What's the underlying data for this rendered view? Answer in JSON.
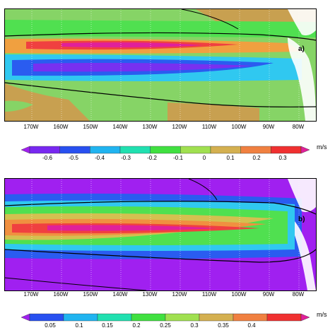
{
  "panels": [
    {
      "label": "a)"
    },
    {
      "label": "b)"
    }
  ],
  "longitude_labels": [
    "170W",
    "160W",
    "150W",
    "140W",
    "130W",
    "120W",
    "110W",
    "100W",
    "90W",
    "80W"
  ],
  "colorbars": [
    {
      "unit": "m/s",
      "ticks": [
        "-0.6",
        "-0.5",
        "-0.4",
        "-0.3",
        "-0.2",
        "-0.1",
        "0",
        "0.1",
        "0.2",
        "0.3"
      ],
      "colors": [
        "#a020f0",
        "#7828f0",
        "#2850f0",
        "#20b4f0",
        "#20e0b0",
        "#40e040",
        "#a0e050",
        "#d4b050",
        "#f08040",
        "#f03030",
        "#e0209a"
      ]
    },
    {
      "unit": "m/s",
      "ticks": [
        "0.05",
        "0.1",
        "0.15",
        "0.2",
        "0.25",
        "0.3",
        "0.35",
        "0.4"
      ],
      "colors": [
        "#a020f0",
        "#2850f0",
        "#20b4f0",
        "#20e0b0",
        "#40e040",
        "#a0e050",
        "#d4b050",
        "#f08040",
        "#f03030",
        "#e0209a"
      ]
    }
  ]
}
